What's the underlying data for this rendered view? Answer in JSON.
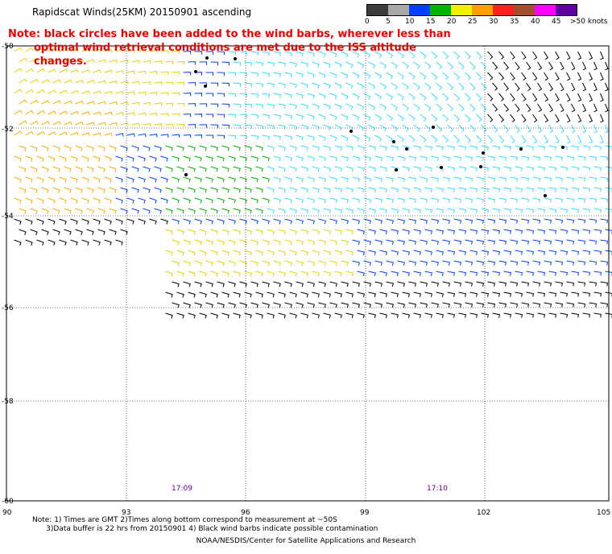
{
  "title": "Rapidscat Winds(25KM) 20150901 ascending",
  "note": {
    "line1": "Note: black circles have been added to the wind barbs, wherever less than",
    "line2": "optimal wind retrieval conditions are met due to the ISS altitude changes."
  },
  "legend": {
    "labels": [
      "0",
      "5",
      "10",
      "15",
      "20",
      "25",
      "30",
      "35",
      "40",
      "45",
      ">50 knots"
    ],
    "colors": [
      "#000000",
      "#8c8c8c",
      "#00a0ff",
      "#0040ff",
      "#00b400",
      "#f0f000",
      "#ffa000",
      "#ff2020",
      "#a05030",
      "#ff00ff",
      "#6000a0"
    ]
  },
  "map": {
    "lat_ticks": [
      "-50",
      "-52",
      "-54",
      "-56",
      "-58",
      "-60"
    ],
    "lon_ticks": [
      "90",
      "93",
      "96",
      "99",
      "102",
      "105"
    ],
    "pass_times": [
      "17:09",
      "17:10"
    ]
  },
  "footnote": {
    "line1": "Note: 1) Times are GMT 2)Times along bottom correspond to measurement at ~50S",
    "line2": "      3)Data buffer is 22 hrs from 20150901 4) Black wind barbs indicate possible contamination"
  },
  "credit": "NOAA/NESDIS/Center for Satellite Applications and Research"
}
